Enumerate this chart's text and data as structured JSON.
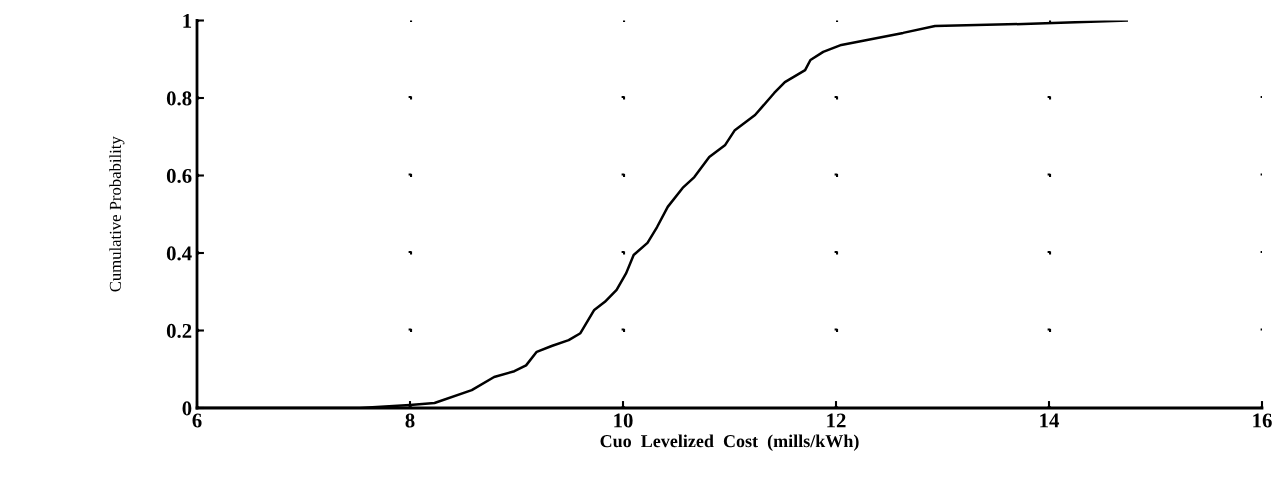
{
  "chart_data": {
    "type": "line",
    "xlabel": "Cuo  Levelized  Cost  (mills/kWh)",
    "ylabel": "Cumulative Probability",
    "x": [
      6,
      7.53,
      8.0,
      8.23,
      8.58,
      8.79,
      8.98,
      9.09,
      9.19,
      9.33,
      9.49,
      9.6,
      9.73,
      9.83,
      9.94,
      10.03,
      10.1,
      10.23,
      10.32,
      10.42,
      10.56,
      10.67,
      10.81,
      10.96,
      11.05,
      11.24,
      11.42,
      11.52,
      11.71,
      11.76,
      11.88,
      12.05,
      12.63,
      12.93,
      13.76,
      14.73
    ],
    "series": [
      {
        "color": "#000000",
        "values": [
          0,
          0,
          0.008,
          0.013,
          0.046,
          0.08,
          0.095,
          0.11,
          0.145,
          0.16,
          0.175,
          0.193,
          0.253,
          0.274,
          0.305,
          0.348,
          0.395,
          0.426,
          0.467,
          0.519,
          0.568,
          0.596,
          0.648,
          0.679,
          0.717,
          0.756,
          0.813,
          0.841,
          0.872,
          0.898,
          0.919,
          0.937,
          0.968,
          0.986,
          0.991,
          1.0
        ]
      }
    ],
    "xlim": [
      6,
      16
    ],
    "xticks": [
      6,
      8,
      10,
      12,
      14,
      16
    ],
    "ylim": [
      0,
      1
    ],
    "yticks": [
      0,
      0.2,
      0.4,
      0.6,
      0.8,
      1
    ],
    "grid": true,
    "marker": "none",
    "line_style": "solid"
  }
}
